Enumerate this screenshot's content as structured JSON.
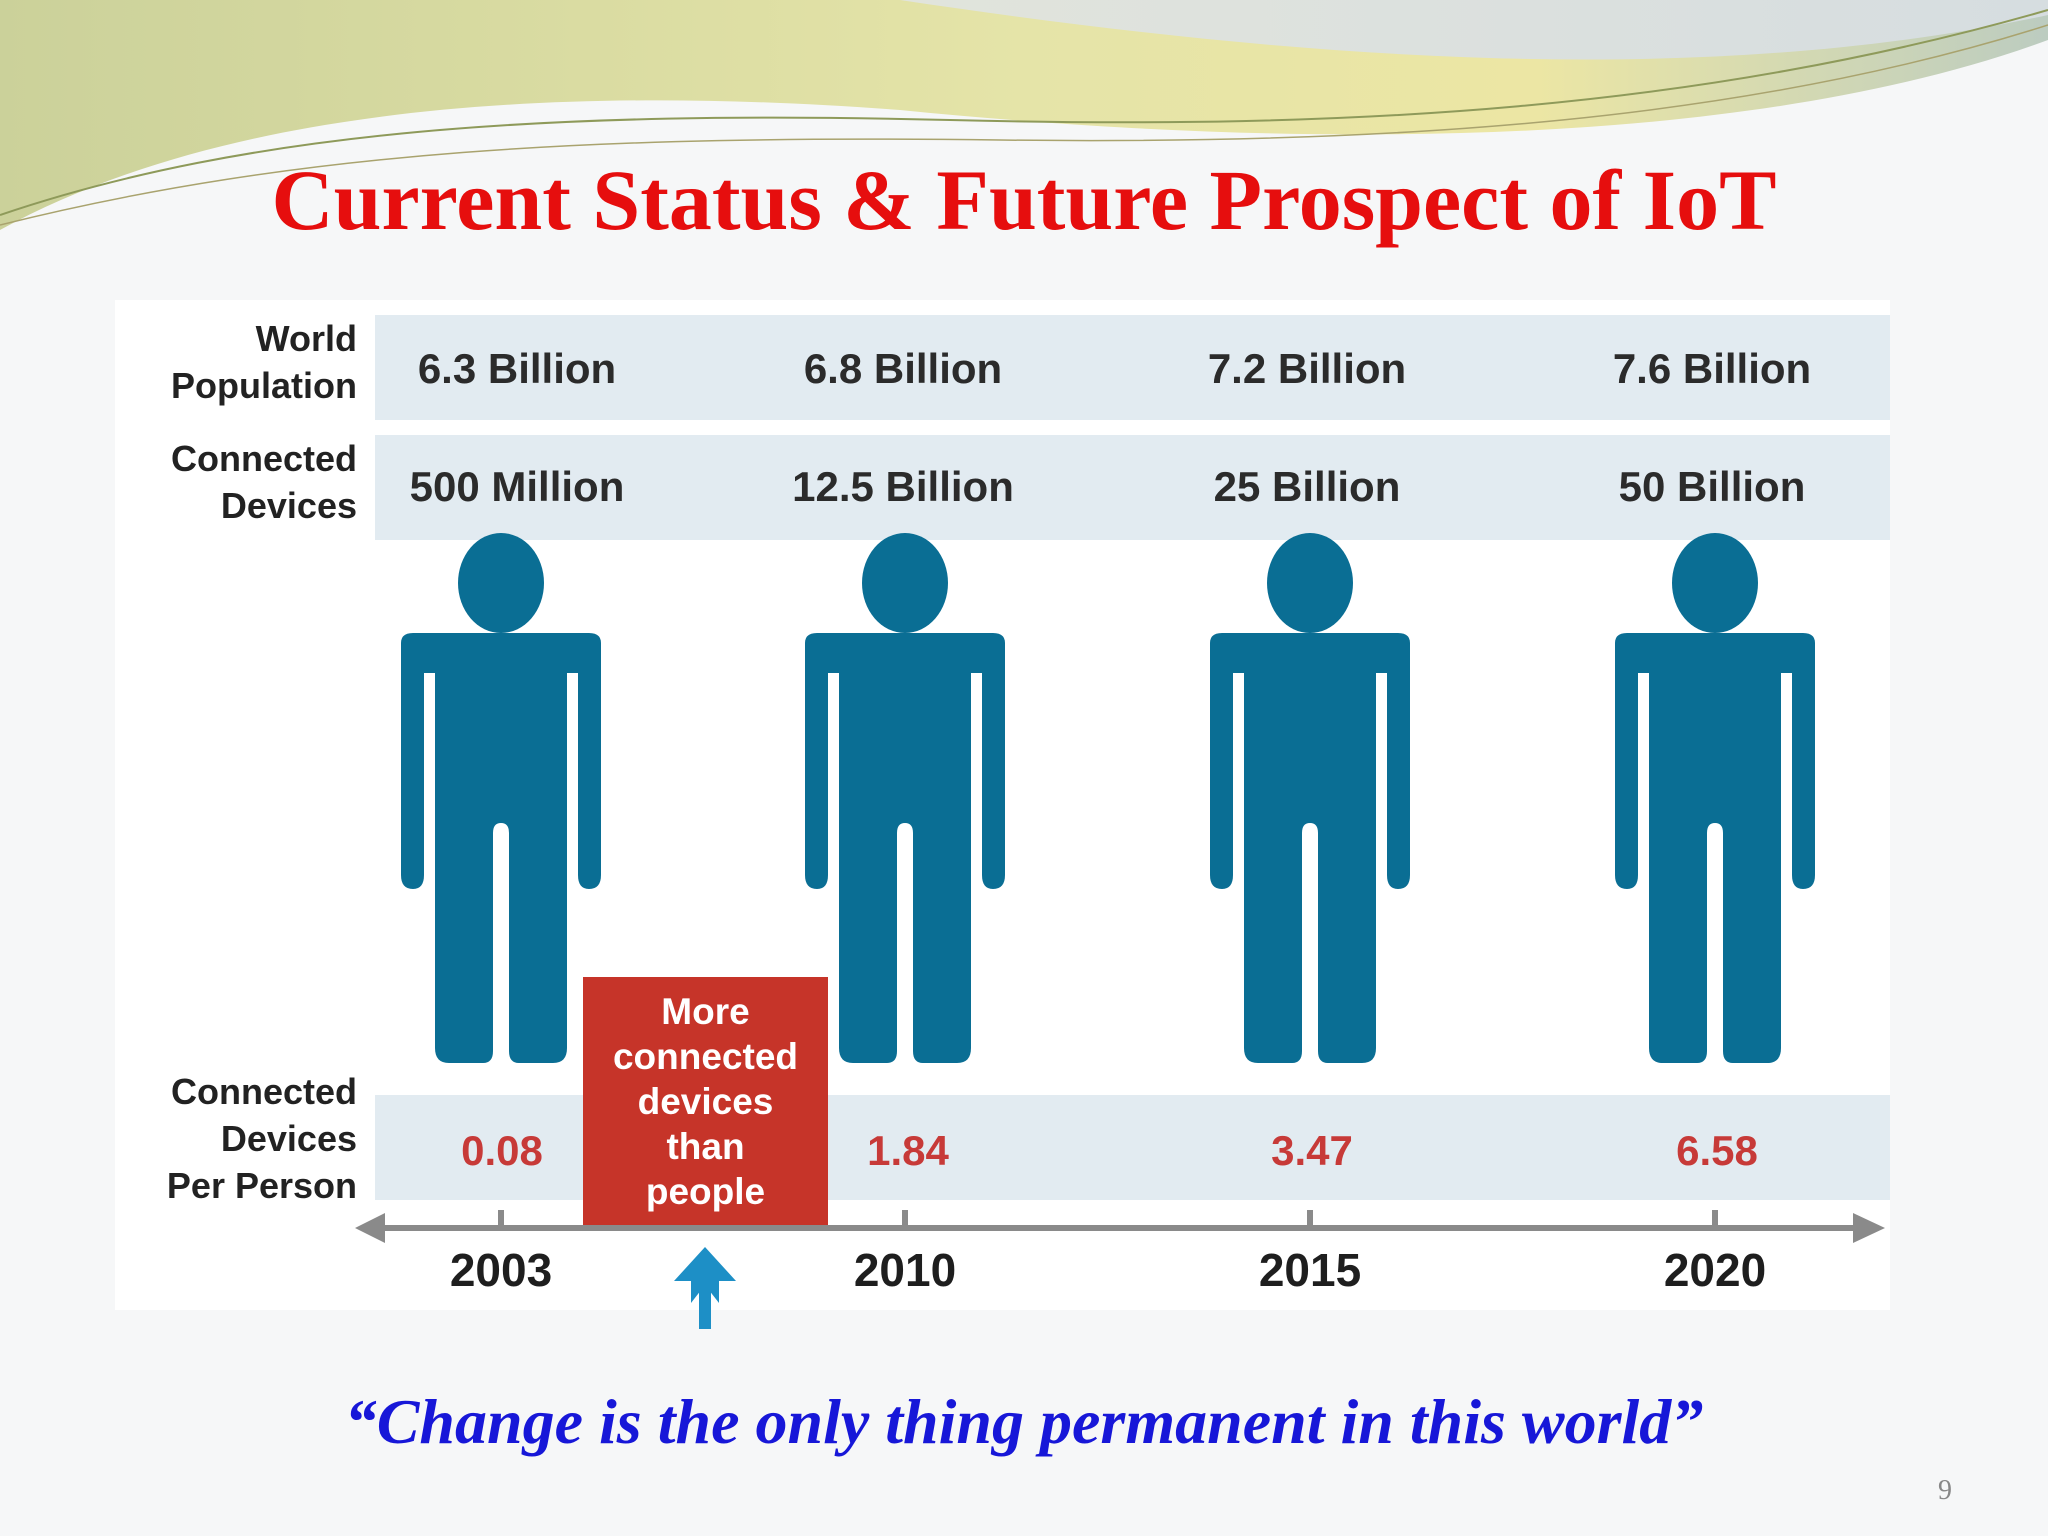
{
  "slide": {
    "title": "Current Status & Future Prospect of IoT",
    "quote": "“Change is the only thing permanent in this world”",
    "page_number": "9"
  },
  "infographic": {
    "row_labels": {
      "population": "World\nPopulation",
      "devices": "Connected\nDevices",
      "per_person": "Connected\nDevices\nPer Person"
    },
    "columns": [
      {
        "year": "2003",
        "population": "6.3 Billion",
        "devices": "500 Million",
        "per_person": "0.08"
      },
      {
        "year": "2010",
        "population": "6.8 Billion",
        "devices": "12.5 Billion",
        "per_person": "1.84"
      },
      {
        "year": "2015",
        "population": "7.2 Billion",
        "devices": "25 Billion",
        "per_person": "3.47"
      },
      {
        "year": "2020",
        "population": "7.6 Billion",
        "devices": "50 Billion",
        "per_person": "6.58"
      }
    ],
    "callout": "More\nconnected\ndevices\nthan\npeople",
    "icons": [
      "person-icon",
      "up-arrow-icon"
    ]
  },
  "colors": {
    "title": "#e60e0e",
    "quote": "#1717d8",
    "person": "#0a6e94",
    "callout": "#c63429",
    "ratio": "#c73a38",
    "band": "#e2ebf1",
    "arrow": "#1d8fc6"
  }
}
